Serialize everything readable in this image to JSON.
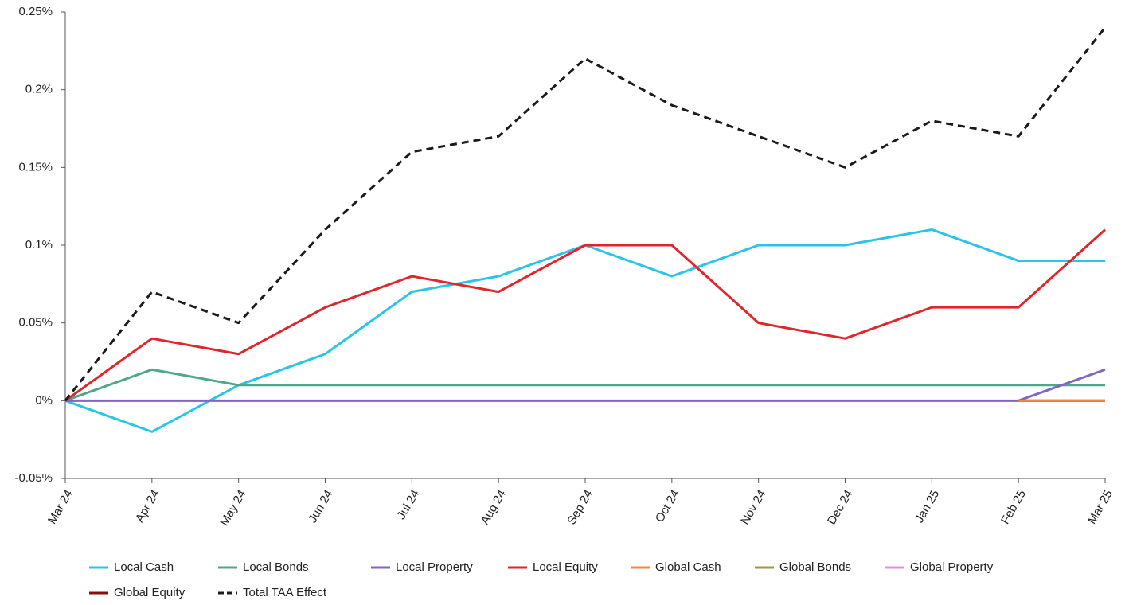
{
  "chart_data": {
    "type": "line",
    "categories": [
      "Mar 24",
      "Apr 24",
      "May 24",
      "Jun 24",
      "Jul 24",
      "Aug 24",
      "Sep 24",
      "Oct 24",
      "Nov 24",
      "Dec 24",
      "Jan 25",
      "Feb 25",
      "Mar 25"
    ],
    "series": [
      {
        "name": "Local Cash",
        "color": "#2ac5e6",
        "values": [
          0,
          -0.02,
          0.01,
          0.03,
          0.07,
          0.08,
          0.1,
          0.08,
          0.1,
          0.1,
          0.11,
          0.09,
          0.09
        ]
      },
      {
        "name": "Local Bonds",
        "color": "#4fa68a",
        "values": [
          0,
          0.02,
          0.01,
          0.01,
          0.01,
          0.01,
          0.01,
          0.01,
          0.01,
          0.01,
          0.01,
          0.01,
          0.01
        ]
      },
      {
        "name": "Local Property",
        "color": "#8465c1",
        "values": [
          0,
          0,
          0,
          0,
          0,
          0,
          0,
          0,
          0,
          0,
          0,
          0,
          0.02
        ]
      },
      {
        "name": "Local Equity",
        "color": "#e0262b",
        "values": [
          0,
          0.04,
          0.03,
          0.06,
          0.08,
          0.07,
          0.1,
          0.1,
          0.05,
          0.04,
          0.06,
          0.06,
          0.11
        ]
      },
      {
        "name": "Global Cash",
        "color": "#f08a3e",
        "values": [
          null,
          null,
          null,
          null,
          null,
          null,
          null,
          null,
          null,
          null,
          null,
          0,
          0
        ]
      },
      {
        "name": "Global Bonds",
        "color": "#9b9b3a",
        "values": [
          null,
          null,
          null,
          null,
          null,
          null,
          null,
          null,
          null,
          null,
          null,
          0,
          0
        ]
      },
      {
        "name": "Global Property",
        "color": "#e58ee0",
        "values": [
          null,
          null,
          null,
          null,
          null,
          null,
          null,
          null,
          null,
          null,
          null,
          0,
          0
        ]
      },
      {
        "name": "Global Equity",
        "color": "#8b0e0e",
        "values": [
          null,
          null,
          null,
          null,
          null,
          null,
          null,
          null,
          null,
          null,
          null,
          0,
          0
        ]
      },
      {
        "name": "Total TAA Effect",
        "color": "#1a1a1a",
        "dashed": true,
        "values": [
          0,
          0.07,
          0.05,
          0.11,
          0.16,
          0.17,
          0.22,
          0.19,
          0.17,
          0.15,
          0.18,
          0.17,
          0.24
        ]
      }
    ],
    "ylim": [
      -0.05,
      0.25
    ],
    "yticks": [
      {
        "value": -0.05,
        "label": "-0.05%"
      },
      {
        "value": 0,
        "label": "0%"
      },
      {
        "value": 0.05,
        "label": "0.05%"
      },
      {
        "value": 0.1,
        "label": "0.1%"
      },
      {
        "value": 0.15,
        "label": "0.15%"
      },
      {
        "value": 0.2,
        "label": "0.2%"
      },
      {
        "value": 0.25,
        "label": "0.25%"
      }
    ],
    "legend": "bottom"
  }
}
